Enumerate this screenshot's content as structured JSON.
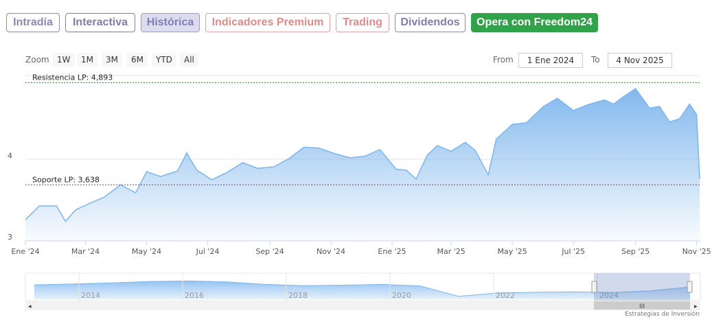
{
  "tabs": [
    {
      "label": "Intradía",
      "color": "#8a8ab0",
      "border": "#8a8ab0",
      "bg": "#ffffff"
    },
    {
      "label": "Interactiva",
      "color": "#7f7fa8",
      "border": "#7f7fa8",
      "bg": "#ffffff"
    },
    {
      "label": "Histórica",
      "color": "#7f7fb4",
      "border": "#9a9ac0",
      "bg": "#dcdcee"
    },
    {
      "label": "Indicadores Premium",
      "color": "#e08a8a",
      "border": "#e8a0a0",
      "bg": "#ffffff"
    },
    {
      "label": "Trading",
      "color": "#e08a8a",
      "border": "#e8a0a0",
      "bg": "#ffffff"
    },
    {
      "label": "Dividendos",
      "color": "#7f7fa8",
      "border": "#8a8ab0",
      "bg": "#ffffff"
    },
    {
      "label": "Opera con Freedom24",
      "color": "#ffffff",
      "border": "#2fa24a",
      "bg": "#2fa24a"
    }
  ],
  "range_selector": {
    "zoom_label": "Zoom",
    "buttons": [
      "1W",
      "1M",
      "3M",
      "6M",
      "YTD",
      "All"
    ],
    "from_label": "From",
    "from_value": "1 Ene 2024",
    "to_label": "To",
    "to_value": "4 Nov 2025"
  },
  "chart_data": {
    "type": "area",
    "title": "",
    "xlabel": "",
    "ylabel": "",
    "x_tick_labels": [
      "Ene '24",
      "Mar '24",
      "May '24",
      "Jul '24",
      "Sep '24",
      "Nov '24",
      "Ene '25",
      "Mar '25",
      "May '25",
      "Jul '25",
      "Sep '25",
      "Nov '25"
    ],
    "y_tick_labels": [
      "3",
      "4"
    ],
    "ylim": [
      2.95,
      4.98
    ],
    "series": [
      {
        "x": [
          "2024-01-01",
          "2024-01-15",
          "2024-02-01",
          "2024-02-10",
          "2024-02-20",
          "2024-03-05",
          "2024-03-20",
          "2024-04-05",
          "2024-04-20",
          "2024-05-01",
          "2024-05-15",
          "2024-06-01",
          "2024-06-10",
          "2024-06-20",
          "2024-07-05",
          "2024-07-20",
          "2024-08-05",
          "2024-08-20",
          "2024-09-05",
          "2024-09-20",
          "2024-10-05",
          "2024-10-20",
          "2024-11-05",
          "2024-11-20",
          "2024-12-05",
          "2024-12-20",
          "2025-01-05",
          "2025-01-15",
          "2025-01-25",
          "2025-02-05",
          "2025-02-15",
          "2025-03-01",
          "2025-03-15",
          "2025-03-25",
          "2025-04-07",
          "2025-04-15",
          "2025-05-01",
          "2025-05-15",
          "2025-06-01",
          "2025-06-15",
          "2025-07-01",
          "2025-07-15",
          "2025-08-01",
          "2025-08-10",
          "2025-08-20",
          "2025-09-01",
          "2025-09-15",
          "2025-09-25",
          "2025-10-05",
          "2025-10-15",
          "2025-10-25",
          "2025-11-01",
          "2025-11-04"
        ],
        "values": [
          3.21,
          3.38,
          3.38,
          3.19,
          3.33,
          3.41,
          3.49,
          3.64,
          3.54,
          3.8,
          3.74,
          3.81,
          4.03,
          3.82,
          3.7,
          3.79,
          3.91,
          3.84,
          3.86,
          3.96,
          4.1,
          4.09,
          4.02,
          3.97,
          3.99,
          4.07,
          3.83,
          3.82,
          3.71,
          4.0,
          4.12,
          4.05,
          4.16,
          4.06,
          3.76,
          4.2,
          4.38,
          4.4,
          4.6,
          4.7,
          4.55,
          4.62,
          4.68,
          4.63,
          4.72,
          4.82,
          4.58,
          4.6,
          4.41,
          4.45,
          4.63,
          4.5,
          3.71
        ]
      }
    ],
    "annotations": [
      {
        "label": "Resistencia LP: 4,893",
        "value": 4.893,
        "color": "#2e7d32"
      },
      {
        "label": "Soporte LP: 3,638",
        "value": 3.638,
        "color": "#c62828"
      }
    ],
    "navigator": {
      "year_labels": [
        "2014",
        "2016",
        "2018",
        "2020",
        "2022",
        "2024"
      ],
      "values": [
        0.58,
        0.62,
        0.66,
        0.72,
        0.74,
        0.7,
        0.6,
        0.55,
        0.57,
        0.6,
        0.54,
        0.12,
        0.25,
        0.28,
        0.3,
        0.27,
        0.34,
        0.5
      ]
    },
    "grid": true,
    "legend": "none"
  },
  "credit": "Estrategias de Inversión",
  "colors": {
    "line": "#7cb5ec",
    "fill_top": "#7cb5ec",
    "accent": "#2fa24a"
  }
}
